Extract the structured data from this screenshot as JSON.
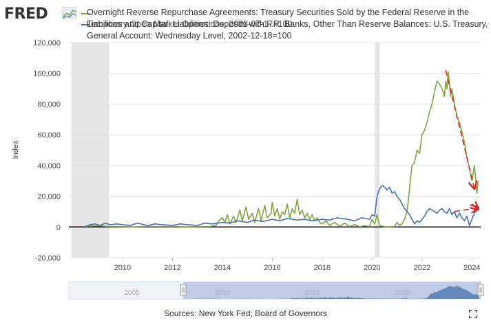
{
  "brand": {
    "logo_text": "FRED",
    "logo_icon": "chart-line-icon"
  },
  "legend": [
    {
      "text": "Overnight Reverse Repurchase Agreements: Treasury Securities Sold by the Federal Reserve in the",
      "color": "#7fa33d"
    },
    {
      "text": "Liabilities and Capital: Liabilities: Deposits with F.R. Banks, Other Than Reserve Balances: U.S. Treasury,",
      "color": "#4572a7",
      "overlap_text": "Temporary Open Market Operations, 2003-07-17=100"
    },
    {
      "text": "General Account: Wednesday Level, 2002-12-18=100",
      "color": null
    }
  ],
  "sources": "Sources: New York Fed; Board of Governors",
  "fullscreen_icon": "expand-icon",
  "chart_data": {
    "type": "line",
    "ylabel": "Index",
    "ylim": [
      -20000,
      120000
    ],
    "yticks": [
      "120,000",
      "100,000",
      "80,000",
      "60,000",
      "40,000",
      "20,000",
      "0",
      "-20,000"
    ],
    "yvalues": [
      120000,
      100000,
      80000,
      60000,
      40000,
      20000,
      0,
      -20000
    ],
    "xlim": [
      2007.85,
      2024.35
    ],
    "xticks": [
      "2010",
      "2012",
      "2014",
      "2016",
      "2018",
      "2020",
      "2022",
      "2024"
    ],
    "xvalues": [
      2010,
      2012,
      2014,
      2016,
      2018,
      2020,
      2022,
      2024
    ],
    "recessions": [
      [
        2007.95,
        2009.45
      ],
      [
        2020.1,
        2020.3
      ]
    ],
    "grid": true,
    "series": [
      {
        "name": "Overnight Reverse Repurchase Agreements: Treasury Securities Sold by the Federal Reserve in the Temporary Open Market Operations, 2003-07-17=100",
        "color": "#7fa33d",
        "x": [
          2008.5,
          2009.0,
          2009.5,
          2010,
          2010.5,
          2011,
          2011.5,
          2012,
          2012.5,
          2013,
          2013.5,
          2013.75,
          2013.85,
          2014.0,
          2014.1,
          2014.2,
          2014.3,
          2014.45,
          2014.55,
          2014.7,
          2014.8,
          2014.95,
          2015.05,
          2015.2,
          2015.3,
          2015.45,
          2015.55,
          2015.7,
          2015.8,
          2015.95,
          2016.0,
          2016.1,
          2016.2,
          2016.3,
          2016.4,
          2016.5,
          2016.6,
          2016.7,
          2016.8,
          2016.9,
          2017.0,
          2017.1,
          2017.2,
          2017.3,
          2017.4,
          2017.5,
          2017.6,
          2017.7,
          2017.8,
          2017.9,
          2018.0,
          2018.15,
          2018.3,
          2018.5,
          2018.7,
          2018.9,
          2019.1,
          2019.3,
          2019.5,
          2019.7,
          2019.9,
          2020.0,
          2020.1,
          2020.2,
          2020.3,
          2020.5,
          2020.7,
          2020.9,
          2021.0,
          2021.1,
          2021.2,
          2021.3,
          2021.4,
          2021.5,
          2021.6,
          2021.7,
          2021.8,
          2021.9,
          2022.0,
          2022.1,
          2022.2,
          2022.3,
          2022.4,
          2022.5,
          2022.6,
          2022.7,
          2022.8,
          2022.9,
          2022.95,
          2023.0,
          2023.05,
          2023.1,
          2023.15,
          2023.2,
          2023.3,
          2023.4,
          2023.5,
          2023.6,
          2023.7,
          2023.8,
          2023.9,
          2024.0,
          2024.1,
          2024.2,
          2024.25
        ],
        "y": [
          500,
          800,
          300,
          200,
          100,
          400,
          200,
          300,
          100,
          200,
          300,
          1000,
          4000,
          6000,
          3000,
          8000,
          2000,
          7000,
          3000,
          11000,
          4000,
          13000,
          5000,
          9000,
          3000,
          12000,
          4000,
          14000,
          6000,
          9000,
          16000,
          7000,
          12000,
          5000,
          10000,
          8000,
          15000,
          6000,
          12000,
          9000,
          18000,
          8000,
          11000,
          6000,
          9000,
          5000,
          8000,
          4000,
          6000,
          3000,
          2000,
          4000,
          1000,
          3000,
          500,
          2500,
          300,
          1500,
          200,
          800,
          300,
          5000,
          2000,
          8000,
          1000,
          200,
          100,
          300,
          3000,
          1000,
          2000,
          5000,
          10000,
          25000,
          40000,
          42000,
          50000,
          48000,
          60000,
          63000,
          68000,
          75000,
          80000,
          88000,
          95000,
          93000,
          90000,
          85000,
          95000,
          90000,
          101000,
          93000,
          85000,
          90000,
          80000,
          72000,
          68000,
          62000,
          55000,
          45000,
          38000,
          30000,
          40000,
          22000,
          30000
        ]
      },
      {
        "name": "Liabilities and Capital: Liabilities: Deposits with F.R. Banks, Other Than Reserve Balances: U.S. Treasury, General Account: Wednesday Level, 2002-12-18=100",
        "color": "#4572a7",
        "x": [
          2008.5,
          2008.7,
          2008.9,
          2009.1,
          2009.3,
          2009.5,
          2009.8,
          2010,
          2010.3,
          2010.6,
          2011,
          2011.3,
          2011.6,
          2012,
          2012.3,
          2012.6,
          2013,
          2013.3,
          2013.6,
          2014,
          2014.3,
          2014.6,
          2015,
          2015.3,
          2015.6,
          2016,
          2016.3,
          2016.6,
          2017,
          2017.3,
          2017.6,
          2018,
          2018.3,
          2018.6,
          2019,
          2019.3,
          2019.6,
          2019.9,
          2020.0,
          2020.1,
          2020.2,
          2020.3,
          2020.4,
          2020.5,
          2020.6,
          2020.7,
          2020.8,
          2020.9,
          2021.0,
          2021.1,
          2021.2,
          2021.3,
          2021.4,
          2021.5,
          2021.6,
          2021.7,
          2021.8,
          2021.9,
          2022.0,
          2022.1,
          2022.2,
          2022.3,
          2022.4,
          2022.5,
          2022.6,
          2022.7,
          2022.8,
          2022.9,
          2023.0,
          2023.1,
          2023.2,
          2023.3,
          2023.4,
          2023.5,
          2023.6,
          2023.7,
          2023.8,
          2023.9,
          2024.0,
          2024.1,
          2024.2,
          2024.25
        ],
        "y": [
          300,
          1500,
          2000,
          1000,
          2500,
          1500,
          2000,
          1500,
          1000,
          2500,
          1000,
          2000,
          1500,
          1000,
          2000,
          1500,
          1000,
          2500,
          2000,
          3000,
          2500,
          4000,
          3000,
          4500,
          3500,
          5000,
          4000,
          5500,
          4500,
          5000,
          4000,
          5000,
          4500,
          6000,
          5000,
          4000,
          6000,
          5000,
          8000,
          7000,
          20000,
          25000,
          27000,
          26000,
          24000,
          26000,
          22000,
          23000,
          20000,
          18000,
          15000,
          12000,
          10000,
          8000,
          5000,
          2000,
          4000,
          3000,
          5000,
          7000,
          10000,
          12000,
          11000,
          10000,
          9000,
          11000,
          12000,
          10000,
          9000,
          12000,
          8000,
          10000,
          6000,
          9000,
          6000,
          4000,
          7000,
          1000,
          5000,
          9000,
          11000,
          12000
        ]
      }
    ],
    "annotations": [
      {
        "type": "arrow",
        "style": "dashed",
        "color": "#d22",
        "from": [
          2022.95,
          102000
        ],
        "to": [
          2024.1,
          25000
        ]
      },
      {
        "type": "arrow",
        "style": "dashed",
        "color": "#d22",
        "from": [
          2023.3,
          10000
        ],
        "to": [
          2024.25,
          12500
        ]
      },
      {
        "type": "arrow",
        "style": "dashed",
        "color": "#d22",
        "from": [
          2024.0,
          15000
        ],
        "to": [
          2024.25,
          11500
        ]
      }
    ],
    "navigator": {
      "xticks": [
        "2005",
        "2010",
        "2015",
        "2020"
      ],
      "xvalues": [
        2005,
        2010,
        2015,
        2020
      ],
      "range": [
        2001.5,
        2024.35
      ],
      "selection": [
        2007.85,
        2024.35
      ]
    }
  }
}
